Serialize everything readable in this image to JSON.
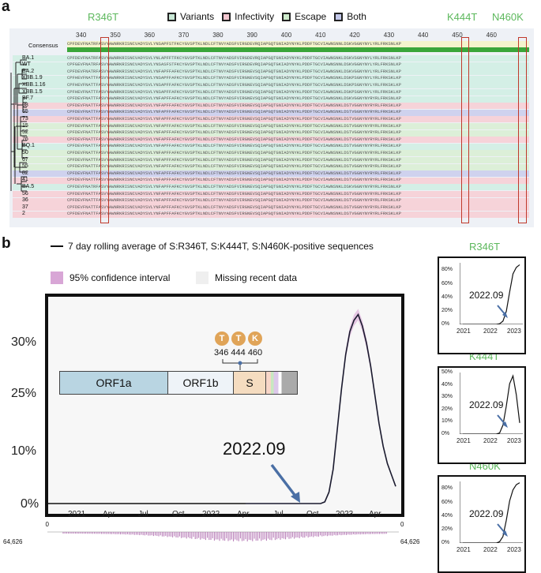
{
  "panel_a": {
    "letter": "a",
    "mutations_top": [
      "R346T",
      "K444T",
      "N460K"
    ],
    "legend": [
      {
        "label": "Variants",
        "color": "#c9e8d6"
      },
      {
        "label": "Infectivity",
        "color": "#f3c6cf"
      },
      {
        "label": "Escape",
        "color": "#cdebcb"
      },
      {
        "label": "Both",
        "color": "#c3c8ea"
      }
    ],
    "consensus_label": "Consensus",
    "ruler": [
      "340",
      "350",
      "360",
      "370",
      "380",
      "390",
      "400",
      "410",
      "420",
      "430",
      "440",
      "450",
      "460"
    ],
    "consensus_seq": "CPFDEVFNATRFASVYAWNRKRISNCVADYSVLYNSAPFSTFKCYGVSPTKLNDLCFTNVYADSFVIRGDEVRQIAPGQTGNIADYNYKLPDDFTGCVIAWNSNNLDSKVGGNYNYLYRLFRKSNLKP",
    "rows": [
      {
        "name": "BA.1",
        "bg": "#d4efe6",
        "seq": "CPFDEVFNATRFASVYAWNRKRISNCVADYSVLYNLAPFFTFKCYGVSPTKLNDLCFTNVYADSFVIRGDEVRQIAPGQTGNIADYNYKLPDDFTGCVIAWNSNKLDSKVSGNYNYLYRLFRKSNLKP"
      },
      {
        "name": "WT",
        "bg": "#d4efe6",
        "seq": "CPFGEVFNATRFASVYAWNRKRISNCVADYSVLYNSASFSTFKCYGVSPTKLNDLCFTNVYADSFVIRGDEVRQIAPGQTGKIADYNYKLPDDFTGCVIAWNSNNLDSKVGGNYNYLYRLFRKSNLKP"
      },
      {
        "name": "BA.2",
        "bg": "#d4efe6",
        "seq": "CPFDEVFNATRFASVYAWNRKRISNCVADYSVLYNFAPFFAFKCYGVSPTKLNDLCFTNVYADSFVIRGNEVSQIAPGQTGNIADYNYKLPDDFTGCVIAWNSNKLDSKVGGNYNYLYRLFRKSNLKP"
      },
      {
        "name": "XBB.1.9",
        "bg": "#d4efe6",
        "seq": "CPFHEVFNATTFASVYAWNRKRISNCVADYSVLYNSAPFFAFKCYGVSPTKLNDLCFTNVYADSFVIRGNEVSQIAPGQTGNIADYNYKLPDDFTGCVIAWNSNKLDSKPSGNYNYLYRLFRKSKLKP"
      },
      {
        "name": "XBB.1.16",
        "bg": "#d4efe6",
        "seq": "CPFHEVFNATTFASVYAWNRKRISNCVADYSVLYNSAPFFAFKCYGVSPTKLNDLCFTNVYADSFVIRGNEVSQIAPGQTGNIADYNYKLPDDFTGCVIAWNSNKLDSKPSGNYNYLYRLFRKSKLKP"
      },
      {
        "name": "XBB.1.5",
        "bg": "#d4efe6",
        "seq": "CPFHEVFNATTFASVYAWNRKRISNCVADYSVLYNSAPFFAFKCYGVSPTKLNDLCFTNVYADSFVIRGNEVSQIAPGQTGNIADYNYKLPDDFTGCVIAWNSNKLDSKPSGNYNYLYRLFRKSKLKP"
      },
      {
        "name": "BF.7",
        "bg": "#d4efe6",
        "seq": "CPFDEVFNATTFASVYAWNRKRISNCVADYSVLYNFAPFFAFKCYGVSPTKLNDLCFTNVYADSFVIRGNEVSQIAPGQTGNIADYNYKLPDDFTGCVIAWNSNKLDSKVGGNYNYRYRLFRKSNLKP"
      },
      {
        "name": "98",
        "bg": "#f6d3d9",
        "seq": "CPFDEVFNATTFASVYAWNRKRISNCVADYSVLYNFAPFFAFKCYGVSPTKLNDLCFTNVYADSFVIRGNEVSQIAPGQTGNIADYNYKLPDDFTGCVIAWNSNKLDSTVGGNYNYRYRLFRKSKLKP"
      },
      {
        "name": "65",
        "bg": "#cfd2ee",
        "seq": "CPFDEVFNATTFASVYAWNRKRISNCVADYSVLYNFAPFFAFKCYGVSPTKLNDLCFTNVYADSFVIRGNEVSQIAPGQTGNIADYNYKLPDDFTGCVIAWNSNKLDSTVGGNYNYRYRLFRKSKLKP"
      },
      {
        "name": "73",
        "bg": "#f6d3d9",
        "seq": "CPFDEVFNATTFASVYAWNRKRISNCVADYSVLYNFAPFFAFKCYGVSPTKLNDLCFTNVYADSFVIRGNEVSQIAPGQTGNIADYNYKLPDDFTGCVIAWNSNKLDSTVGGNYNYRYRLFRKSKLKP"
      },
      {
        "name": "15",
        "bg": "#dcefd8",
        "seq": "CPFDEVFNATTFASVYAWNRKRISNCVADYSVLYNFAPFFAFKCYGVSPTKLNDLCFTNVYADSFVIRGNEVSQIAPGQTGNIADYNYKLPDDFTGCVIAWNSNKLDSTVGGNYNYRYRLFRKSKLKP"
      },
      {
        "name": "52",
        "bg": "#dcefd8",
        "seq": "CPFDEVFNATTFASVYAWNRKRISNCVADYSVLYNFAPFFAFKCYGVSPTKLNDLCFTNVYADSFVIRGNEVSQIAPGQTGNIADYNYKLPDDFTGCVIAWNSNKLDSTVGGNYNYRYRLFRKSKLKP"
      },
      {
        "name": "76",
        "bg": "#f6d3d9",
        "seq": "CPFDEVFNATTFASVYAWNRKRISNCVADYSVLYNFAPFFAFKCYGVSPTKLNDLCFTNVYADSFVIRGNEVSQIAPGQTGNIADYNYKLPDDFTGCVIAWNSNKLDSTVGGNYNYRYRLFRKSKLKP"
      },
      {
        "name": "BQ.1",
        "bg": "#d4efe6",
        "seq": "CPFDEVFNATTFASVYAWNRKRISNCVADYSVLYNFAPFFAFKCYGVSPTKLNDLCFTNVYADSFVIRGNEVSQIAPGQTGNIADYNYKLPDDFTGCVIAWNSNKLDSTVGGNYNYRYRLFRKSKLKP"
      },
      {
        "name": "50",
        "bg": "#dcefd8",
        "seq": "CPFDEVFNATTFASVYAWNRKRISNCVADYSVLYNFAPFFAFKCYGVSPTKLNDLCFTNVYADSFVIRGNEVSQIAPGQTGNIADYNYKLPDDFTGCVIAWNSNKLDSTVGGNYNYRYRLFRKSKLKP"
      },
      {
        "name": "67",
        "bg": "#dcefd8",
        "seq": "CPFDEVFNATTFASVYAWNRKRISNCVADYSVLYNFAPFFAFKCYGVSPTKLNDLCFTNVYADSFVIRGNEVSQIAPGQTGNIADYNYKLPDDFTGCVIAWNSNKLDSTVGGNYNYRYRLFRKSKLKP"
      },
      {
        "name": "55",
        "bg": "#dcefd8",
        "seq": "CPFDEVFNATTFASVYAWNRKRISNCVADYSVLYNFAPFFAFKCYGVSPTKLNDLCFTNVYADSFVIRGNEVSQIAPGQTGNIADYNYKLPDDFTGCVIAWNSNKLDSTVGGNYNYRYRLFRKSKLKP"
      },
      {
        "name": "82",
        "bg": "#cfd2ee",
        "seq": "CPFDEVFNATTFASVYAWNRKRISNCVADYSVLYNFAPFFAFKCYGVSPTKLNDLCFTNVYADSFVIRGNEVSQIAPGQTGNIADYNYKLPDDFTGCVIAWNSNKLDSTVGGNYNYRYRLFRKSKLKP"
      },
      {
        "name": "41",
        "bg": "#f6d3d9",
        "seq": "CPFDEVFNATTFASVYAWNRKRISNCVADYSVLYNFAPFFAFKCYGVSPTKLNDLCFTNVYADSFVIRGNEVSQIAPGQTGNIADYNYKLPDDFTGCVIAWNSNKLDSTVGGNYNYRYRLFRKSKLKP"
      },
      {
        "name": "BA.5",
        "bg": "#d4efe6",
        "seq": "CPFDEVFNATRFASVYAWNRKRISNCVADYSVLYNFAPFFAFKCYGVSPTKLNDLCFTNVYADSFVIRGNEVSQIAPGQTGNIADYNYKLPDDFTGCVIAWNSNKLDSKVGGNYNYRYRLFRKSNLKP"
      },
      {
        "name": "56",
        "bg": "#f6d3d9",
        "seq": "CPFDEVFNATTFASVYAWNRKRISNCVADYSVLYNFAPFFAFKCYGVSPTKLNDLCFTNVYADSFVIRGNEVSQIAPGQTGNIADYNYKLPDDFTGCVIAWNSNKLDSTVGGNYNYRYRLFRKSKLKP"
      },
      {
        "name": "36",
        "bg": "#f6d3d9",
        "seq": "CPFDEVFNATTFASVYAWNRKRISNCVADYSVLYNFAPFFAFKCYGVSPTKLNDLCFTNVYADSFVIRGNEVSQIAPGQTGNIADYNYKLPDDFTGCVIAWNSNKLDSTVGGNYNYRYRLFRKSKLKP"
      },
      {
        "name": "37",
        "bg": "#f6d3d9",
        "seq": "CPFDEVFNATTFASVYAWNRKRISNCVADYSVLYNFAPFFAFKCYGVSPTKLNDLCFTNVYADSFVIRGNEVSQIAPGQTGNIADYNYKLPDDFTGCVIAWNSNKLDSTVGGNYNYRYRLFRKSKLKP"
      },
      {
        "name": "2",
        "bg": "#f6d3d9",
        "seq": "CPFDEVFNATTFASVYAWNRKRISNCVADYSVLYNFAPFFAFKCYGVSPTKLNDLCFTNVYADSFVIRGNEVSQIAPGQTGNIADYNYKLPDDFTGCVIAWNSNKLDSTVGGNYNYRYRLFRKSKLKP"
      }
    ]
  },
  "panel_b": {
    "letter": "b",
    "legend_line": "7 day rolling average of S:R346T, S:K444T, S:N460K-positive sequences",
    "legend_ci": "95% confidence interval",
    "legend_missing": "Missing recent data",
    "annotation": "2022.09",
    "gene_labels": [
      "ORF1a",
      "ORF1b",
      "S"
    ],
    "mut_letters": [
      "T",
      "T",
      "K"
    ],
    "mut_positions": "346 444 460",
    "counts_left": "64,626",
    "counts_right": "64,626",
    "count_zero_left": "0",
    "count_zero_right": "0"
  },
  "chart_data": [
    {
      "type": "line",
      "title": "",
      "series": [
        {
          "values": [
            0,
            0,
            0,
            0,
            0,
            0,
            0,
            0,
            0,
            0,
            0,
            0,
            0,
            0,
            0,
            0,
            0,
            0,
            0,
            0.3,
            2,
            6,
            13,
            20,
            26,
            30,
            32,
            33,
            31,
            28,
            24,
            19,
            14,
            10,
            7,
            5,
            3
          ]
        }
      ],
      "x_tick_labels": [
        "2021",
        "Apr",
        "Jul",
        "Oct",
        "2022",
        "Apr",
        "Jul",
        "Oct",
        "2023",
        "Apr"
      ],
      "y_tick_labels": [
        "0%",
        "10%",
        "25%",
        "30%"
      ],
      "ylim": [
        0,
        35
      ]
    },
    {
      "type": "line",
      "title": "R346T",
      "series": [
        {
          "values": [
            0,
            0,
            0,
            0,
            0,
            0,
            0,
            0,
            0,
            0,
            0,
            1,
            5,
            20,
            50,
            78,
            88,
            92
          ]
        }
      ],
      "x_tick_labels": [
        "2021",
        "2022",
        "2023"
      ],
      "y_tick_labels": [
        "0%",
        "20%",
        "40%",
        "60%",
        "80%"
      ],
      "annotation": "2022.09",
      "ylim": [
        0,
        95
      ]
    },
    {
      "type": "line",
      "title": "K444T",
      "series": [
        {
          "values": [
            0,
            0,
            0,
            0,
            0,
            0,
            0,
            0,
            0,
            0,
            0,
            1,
            8,
            25,
            45,
            52,
            35,
            10
          ]
        }
      ],
      "x_tick_labels": [
        "2021",
        "2022",
        "2023"
      ],
      "y_tick_labels": [
        "0%",
        "10%",
        "20%",
        "30%",
        "40%",
        "50%"
      ],
      "annotation": "2022.09",
      "ylim": [
        0,
        55
      ]
    },
    {
      "type": "line",
      "title": "N460K",
      "series": [
        {
          "values": [
            0,
            0,
            0,
            0,
            0,
            0,
            0,
            0,
            0,
            0,
            0,
            2,
            10,
            35,
            65,
            82,
            90,
            93
          ]
        }
      ],
      "x_tick_labels": [
        "2021",
        "2022",
        "2023"
      ],
      "y_tick_labels": [
        "0%",
        "20%",
        "40%",
        "60%",
        "80%"
      ],
      "annotation": "2022.09",
      "ylim": [
        0,
        95
      ]
    }
  ]
}
